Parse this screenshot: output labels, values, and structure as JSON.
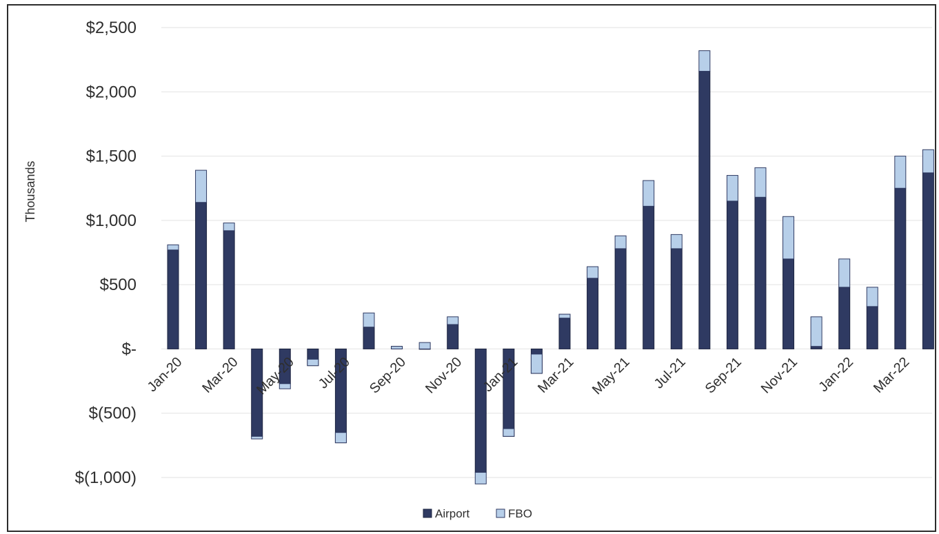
{
  "chart_data": {
    "type": "bar",
    "stacked": true,
    "categories": [
      "Jan-20",
      "Feb-20",
      "Mar-20",
      "Apr-20",
      "May-20",
      "Jun-20",
      "Jul-20",
      "Aug-20",
      "Sep-20",
      "Oct-20",
      "Nov-20",
      "Dec-20",
      "Jan-21",
      "Feb-21",
      "Mar-21",
      "Apr-21",
      "May-21",
      "Jun-21",
      "Jul-21",
      "Aug-21",
      "Sep-21",
      "Oct-21",
      "Nov-21",
      "Dec-21",
      "Jan-22",
      "Feb-22",
      "Mar-22",
      "Apr-22"
    ],
    "x_tick_labels": [
      "Jan-20",
      "Mar-20",
      "May-20",
      "Jul-20",
      "Sep-20",
      "Nov-20",
      "Jan-21",
      "Mar-21",
      "May-21",
      "Jul-21",
      "Sep-21",
      "Nov-21",
      "Jan-22",
      "Mar-22"
    ],
    "series": [
      {
        "name": "Airport",
        "color": "#2f3a62",
        "values": [
          770,
          1140,
          920,
          -680,
          -270,
          -130,
          -730,
          170,
          20,
          0,
          190,
          -960,
          -680,
          -190,
          270,
          550,
          780,
          1110,
          780,
          2160,
          1150,
          1180,
          700,
          20,
          480,
          330,
          1250,
          1370
        ]
      },
      {
        "name": "FBO",
        "color": "#b7cfe9",
        "values": [
          40,
          250,
          60,
          -20,
          -40,
          50,
          80,
          110,
          -20,
          50,
          60,
          -90,
          60,
          150,
          -30,
          90,
          100,
          200,
          110,
          160,
          200,
          230,
          330,
          230,
          220,
          150,
          250,
          180
        ]
      }
    ],
    "ylabel": "Thousands",
    "ylim": [
      -1000,
      2500
    ],
    "y_ticks": [
      {
        "value": 2500,
        "label": "$2,500"
      },
      {
        "value": 2000,
        "label": "$2,000"
      },
      {
        "value": 1500,
        "label": "$1,500"
      },
      {
        "value": 1000,
        "label": "$1,000"
      },
      {
        "value": 500,
        "label": "$500"
      },
      {
        "value": 0,
        "label": "$-"
      },
      {
        "value": -500,
        "label": "$(500)"
      },
      {
        "value": -1000,
        "label": "$(1,000)"
      }
    ],
    "grid": true,
    "legend_position": "bottom"
  }
}
